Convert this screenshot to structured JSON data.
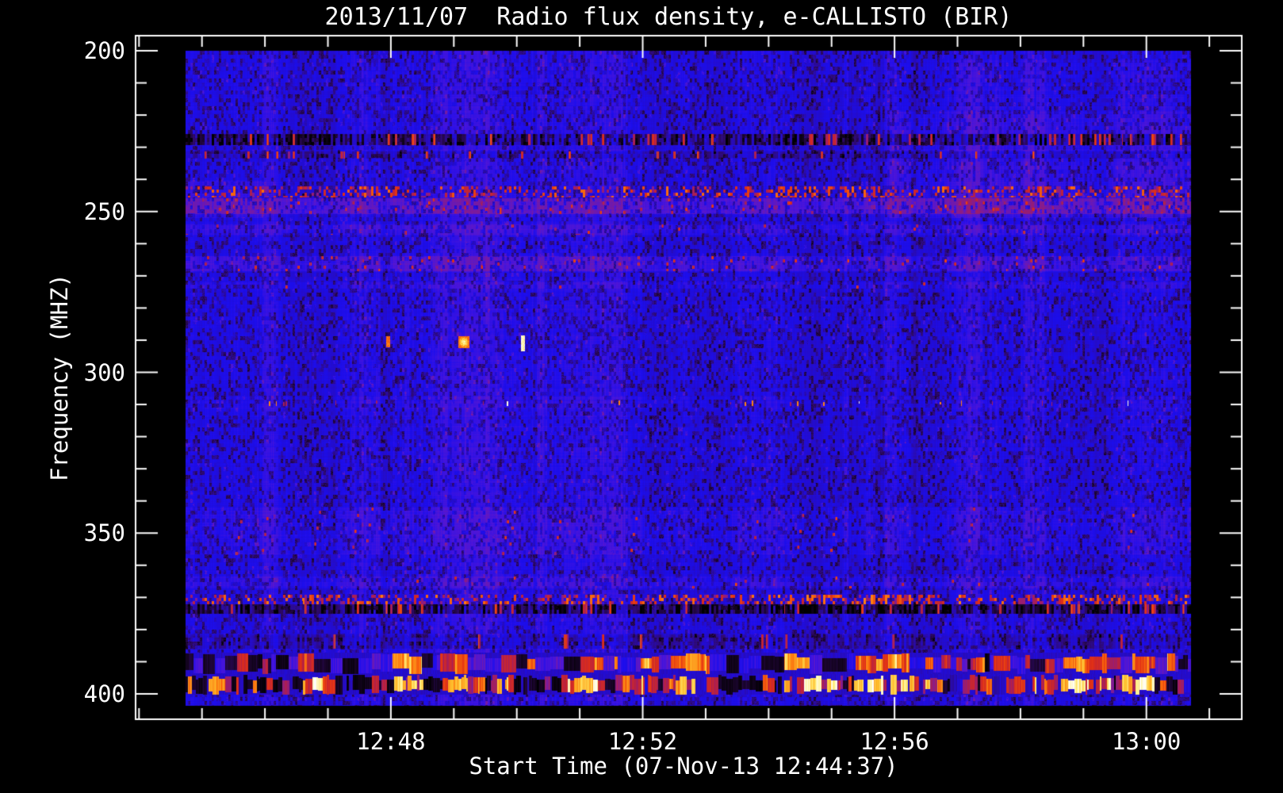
{
  "chart": {
    "background": "#000000",
    "axis_color": "#ffffff",
    "text_color": "#ffffff"
  },
  "chart_data": {
    "type": "heatmap",
    "title": "2013/11/07  Radio flux density, e-CALLISTO (BIR)",
    "xlabel": "Start Time (07-Nov-13 12:44:37)",
    "ylabel": "Frequency (MHZ)",
    "date": "2013/11/07",
    "station": "BIR",
    "start_time": "12:44:37",
    "x_ticks": [
      {
        "label": "12:48",
        "t": 3.383
      },
      {
        "label": "12:52",
        "t": 7.383
      },
      {
        "label": "12:56",
        "t": 11.383
      },
      {
        "label": "13:00",
        "t": 15.383
      }
    ],
    "x_minor_first_t": -0.617,
    "x_minor_step_min": 1,
    "x_minor_count": 18,
    "y_ticks": [
      {
        "label": "200",
        "mhz": 200
      },
      {
        "label": "250",
        "mhz": 250
      },
      {
        "label": "300",
        "mhz": 300
      },
      {
        "label": "350",
        "mhz": 350
      },
      {
        "label": "400",
        "mhz": 400
      }
    ],
    "y_minor_every_mhz": 10,
    "axis_t_range_min": [
      -0.68,
      16.91
    ],
    "axis_freq_range_mhz": [
      195.1,
      408.1
    ],
    "data_t_range_min": [
      0.12,
      16.09
    ],
    "data_freq_range_mhz": [
      200.0,
      403.7
    ],
    "background_level": 0.4,
    "noise": {
      "speckle_prob": 0.36,
      "speckle_depth": 0.26,
      "red_fleck_prob": 0.05,
      "red_fleck_gain": 0.12
    },
    "palette_stops": [
      [
        0.0,
        0,
        0,
        0
      ],
      [
        0.1,
        25,
        5,
        40
      ],
      [
        0.22,
        48,
        10,
        110
      ],
      [
        0.32,
        40,
        12,
        190
      ],
      [
        0.4,
        28,
        14,
        238
      ],
      [
        0.48,
        80,
        22,
        215
      ],
      [
        0.56,
        130,
        28,
        150
      ],
      [
        0.64,
        180,
        32,
        70
      ],
      [
        0.72,
        225,
        48,
        22
      ],
      [
        0.8,
        252,
        110,
        12
      ],
      [
        0.88,
        255,
        190,
        45
      ],
      [
        0.94,
        255,
        240,
        130
      ],
      [
        1.0,
        255,
        255,
        255
      ]
    ],
    "bands": [
      {
        "f0": 226.0,
        "f1": 229.4,
        "kind": "dark",
        "depth": 0.36,
        "prob": 0.62,
        "red_prob": 0.05
      },
      {
        "f0": 231.4,
        "f1": 233.6,
        "kind": "dark",
        "depth": 0.15,
        "prob": 0.42,
        "red_prob": 0.03
      },
      {
        "f0": 242.2,
        "f1": 245.5,
        "kind": "red",
        "prob": 0.3,
        "lo": 0.56,
        "hi": 0.8,
        "env_boost": 0.0
      },
      {
        "f0": 245.9,
        "f1": 250.8,
        "kind": "tint",
        "add": 0.1,
        "red_prob": 0.04
      },
      {
        "f0": 254.0,
        "f1": 257.2,
        "kind": "tint",
        "add": 0.05,
        "red_prob": 0.01
      },
      {
        "f0": 263.9,
        "f1": 268.6,
        "kind": "tint",
        "add": 0.07,
        "red_prob": 0.035
      },
      {
        "f0": 272.0,
        "f1": 274.0,
        "kind": "tint",
        "add": 0.03,
        "red_prob": 0.01
      },
      {
        "f0": 307.5,
        "f1": 311.5,
        "kind": "tint",
        "add": 0.02,
        "red_prob": 0.0
      },
      {
        "f0": 308.7,
        "f1": 310.6,
        "kind": "dash",
        "prob": 0.066
      },
      {
        "f0": 342.0,
        "f1": 356.8,
        "kind": "tint",
        "add": 0.03,
        "red_prob": 0.008
      },
      {
        "f0": 363.5,
        "f1": 367.2,
        "kind": "tint",
        "add": 0.04,
        "red_prob": 0.01
      },
      {
        "f0": 369.1,
        "f1": 372.1,
        "kind": "red",
        "prob": 0.26,
        "lo": 0.56,
        "hi": 0.82,
        "env_boost": 0.35
      },
      {
        "f0": 372.1,
        "f1": 375.1,
        "kind": "dark",
        "depth": 0.4,
        "prob": 0.66,
        "red_prob": 0.05
      },
      {
        "f0": 381.5,
        "f1": 385.9,
        "kind": "dark",
        "depth": 0.14,
        "prob": 0.45,
        "red_prob": 0.02
      },
      {
        "f0": 387.1,
        "f1": 393.8,
        "kind": "blotch"
      },
      {
        "f0": 393.8,
        "f1": 400.2,
        "kind": "burst"
      }
    ],
    "tints": [
      {
        "t0": 11.3,
        "t1": 16.2,
        "f0": 219.0,
        "f1": 252.0,
        "add": 0.045
      },
      {
        "t0": 0.1,
        "t1": 1.35,
        "f0": 240.5,
        "f1": 252.0,
        "add": 0.04
      },
      {
        "t0": 11.9,
        "t1": 16.2,
        "f0": 203.0,
        "f1": 219.0,
        "add": 0.02
      },
      {
        "t0": 5.9,
        "t1": 8.6,
        "f0": 226.0,
        "f1": 229.4,
        "add": 0.03
      }
    ],
    "bursts_397mhz": [
      {
        "t0": 0.55,
        "t1": 0.8,
        "amp": 0.45
      },
      {
        "t0": 2.02,
        "t1": 2.36,
        "amp": 1.0
      },
      {
        "t0": 3.47,
        "t1": 3.85,
        "amp": 0.7
      },
      {
        "t0": 4.29,
        "t1": 4.73,
        "amp": 0.55
      },
      {
        "t0": 5.05,
        "t1": 5.25,
        "amp": 0.45
      },
      {
        "t0": 6.18,
        "t1": 6.75,
        "amp": 0.9
      },
      {
        "t0": 7.25,
        "t1": 7.63,
        "amp": 0.55
      },
      {
        "t0": 8.0,
        "t1": 8.51,
        "amp": 0.85
      },
      {
        "t0": 9.71,
        "t1": 10.52,
        "amp": 0.9
      },
      {
        "t0": 10.78,
        "t1": 11.85,
        "amp": 0.9
      },
      {
        "t0": 13.42,
        "t1": 13.67,
        "amp": 0.6
      },
      {
        "t0": 13.93,
        "t1": 14.78,
        "amp": 1.0
      },
      {
        "t0": 15.0,
        "t1": 15.5,
        "amp": 0.95
      }
    ],
    "point_events": [
      {
        "t0": 4.455,
        "t1": 4.62,
        "f0": 288.8,
        "f1": 292.2,
        "level": 0.8,
        "core": 0.14,
        "label": "compact red burst near 290 MHz at ~12:49"
      },
      {
        "t0": 3.31,
        "t1": 3.36,
        "f0": 288.8,
        "f1": 292.0,
        "level": 0.8,
        "core": 0.0,
        "label": "narrow orange dash"
      },
      {
        "t0": 5.45,
        "t1": 5.5,
        "f0": 288.5,
        "f1": 293.2,
        "level": 0.97,
        "core": 0.0,
        "label": "narrow white dash"
      }
    ]
  }
}
